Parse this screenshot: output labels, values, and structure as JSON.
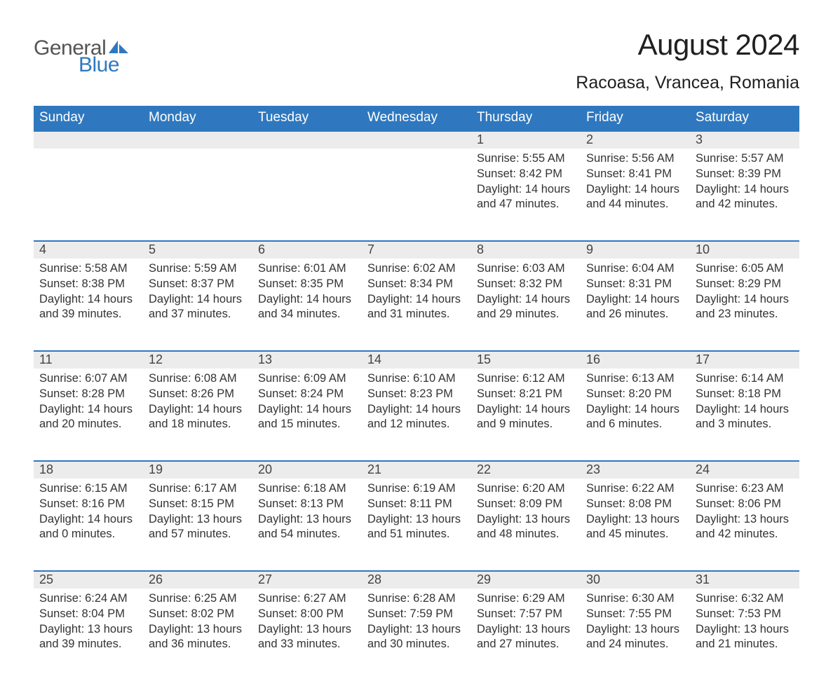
{
  "brand": {
    "part1": "General",
    "part2": "Blue",
    "text_color": "#555555",
    "accent_color": "#2f78bf"
  },
  "title": "August 2024",
  "location": "Racoasa, Vrancea, Romania",
  "colors": {
    "header_bg": "#2f78bf",
    "header_text": "#ffffff",
    "daynum_bg": "#ececec",
    "daynum_border": "#2f78bf",
    "body_text": "#333333",
    "page_bg": "#ffffff"
  },
  "typography": {
    "title_fontsize": 42,
    "location_fontsize": 25,
    "weekday_fontsize": 19,
    "daynum_fontsize": 18,
    "cell_fontsize": 16.5,
    "font_family": "Arial"
  },
  "layout": {
    "columns": 7,
    "weeks": 5,
    "leading_blanks": 4
  },
  "weekdays": [
    "Sunday",
    "Monday",
    "Tuesday",
    "Wednesday",
    "Thursday",
    "Friday",
    "Saturday"
  ],
  "days": [
    {
      "n": "1",
      "sunrise": "Sunrise: 5:55 AM",
      "sunset": "Sunset: 8:42 PM",
      "daylight": "Daylight: 14 hours and 47 minutes."
    },
    {
      "n": "2",
      "sunrise": "Sunrise: 5:56 AM",
      "sunset": "Sunset: 8:41 PM",
      "daylight": "Daylight: 14 hours and 44 minutes."
    },
    {
      "n": "3",
      "sunrise": "Sunrise: 5:57 AM",
      "sunset": "Sunset: 8:39 PM",
      "daylight": "Daylight: 14 hours and 42 minutes."
    },
    {
      "n": "4",
      "sunrise": "Sunrise: 5:58 AM",
      "sunset": "Sunset: 8:38 PM",
      "daylight": "Daylight: 14 hours and 39 minutes."
    },
    {
      "n": "5",
      "sunrise": "Sunrise: 5:59 AM",
      "sunset": "Sunset: 8:37 PM",
      "daylight": "Daylight: 14 hours and 37 minutes."
    },
    {
      "n": "6",
      "sunrise": "Sunrise: 6:01 AM",
      "sunset": "Sunset: 8:35 PM",
      "daylight": "Daylight: 14 hours and 34 minutes."
    },
    {
      "n": "7",
      "sunrise": "Sunrise: 6:02 AM",
      "sunset": "Sunset: 8:34 PM",
      "daylight": "Daylight: 14 hours and 31 minutes."
    },
    {
      "n": "8",
      "sunrise": "Sunrise: 6:03 AM",
      "sunset": "Sunset: 8:32 PM",
      "daylight": "Daylight: 14 hours and 29 minutes."
    },
    {
      "n": "9",
      "sunrise": "Sunrise: 6:04 AM",
      "sunset": "Sunset: 8:31 PM",
      "daylight": "Daylight: 14 hours and 26 minutes."
    },
    {
      "n": "10",
      "sunrise": "Sunrise: 6:05 AM",
      "sunset": "Sunset: 8:29 PM",
      "daylight": "Daylight: 14 hours and 23 minutes."
    },
    {
      "n": "11",
      "sunrise": "Sunrise: 6:07 AM",
      "sunset": "Sunset: 8:28 PM",
      "daylight": "Daylight: 14 hours and 20 minutes."
    },
    {
      "n": "12",
      "sunrise": "Sunrise: 6:08 AM",
      "sunset": "Sunset: 8:26 PM",
      "daylight": "Daylight: 14 hours and 18 minutes."
    },
    {
      "n": "13",
      "sunrise": "Sunrise: 6:09 AM",
      "sunset": "Sunset: 8:24 PM",
      "daylight": "Daylight: 14 hours and 15 minutes."
    },
    {
      "n": "14",
      "sunrise": "Sunrise: 6:10 AM",
      "sunset": "Sunset: 8:23 PM",
      "daylight": "Daylight: 14 hours and 12 minutes."
    },
    {
      "n": "15",
      "sunrise": "Sunrise: 6:12 AM",
      "sunset": "Sunset: 8:21 PM",
      "daylight": "Daylight: 14 hours and 9 minutes."
    },
    {
      "n": "16",
      "sunrise": "Sunrise: 6:13 AM",
      "sunset": "Sunset: 8:20 PM",
      "daylight": "Daylight: 14 hours and 6 minutes."
    },
    {
      "n": "17",
      "sunrise": "Sunrise: 6:14 AM",
      "sunset": "Sunset: 8:18 PM",
      "daylight": "Daylight: 14 hours and 3 minutes."
    },
    {
      "n": "18",
      "sunrise": "Sunrise: 6:15 AM",
      "sunset": "Sunset: 8:16 PM",
      "daylight": "Daylight: 14 hours and 0 minutes."
    },
    {
      "n": "19",
      "sunrise": "Sunrise: 6:17 AM",
      "sunset": "Sunset: 8:15 PM",
      "daylight": "Daylight: 13 hours and 57 minutes."
    },
    {
      "n": "20",
      "sunrise": "Sunrise: 6:18 AM",
      "sunset": "Sunset: 8:13 PM",
      "daylight": "Daylight: 13 hours and 54 minutes."
    },
    {
      "n": "21",
      "sunrise": "Sunrise: 6:19 AM",
      "sunset": "Sunset: 8:11 PM",
      "daylight": "Daylight: 13 hours and 51 minutes."
    },
    {
      "n": "22",
      "sunrise": "Sunrise: 6:20 AM",
      "sunset": "Sunset: 8:09 PM",
      "daylight": "Daylight: 13 hours and 48 minutes."
    },
    {
      "n": "23",
      "sunrise": "Sunrise: 6:22 AM",
      "sunset": "Sunset: 8:08 PM",
      "daylight": "Daylight: 13 hours and 45 minutes."
    },
    {
      "n": "24",
      "sunrise": "Sunrise: 6:23 AM",
      "sunset": "Sunset: 8:06 PM",
      "daylight": "Daylight: 13 hours and 42 minutes."
    },
    {
      "n": "25",
      "sunrise": "Sunrise: 6:24 AM",
      "sunset": "Sunset: 8:04 PM",
      "daylight": "Daylight: 13 hours and 39 minutes."
    },
    {
      "n": "26",
      "sunrise": "Sunrise: 6:25 AM",
      "sunset": "Sunset: 8:02 PM",
      "daylight": "Daylight: 13 hours and 36 minutes."
    },
    {
      "n": "27",
      "sunrise": "Sunrise: 6:27 AM",
      "sunset": "Sunset: 8:00 PM",
      "daylight": "Daylight: 13 hours and 33 minutes."
    },
    {
      "n": "28",
      "sunrise": "Sunrise: 6:28 AM",
      "sunset": "Sunset: 7:59 PM",
      "daylight": "Daylight: 13 hours and 30 minutes."
    },
    {
      "n": "29",
      "sunrise": "Sunrise: 6:29 AM",
      "sunset": "Sunset: 7:57 PM",
      "daylight": "Daylight: 13 hours and 27 minutes."
    },
    {
      "n": "30",
      "sunrise": "Sunrise: 6:30 AM",
      "sunset": "Sunset: 7:55 PM",
      "daylight": "Daylight: 13 hours and 24 minutes."
    },
    {
      "n": "31",
      "sunrise": "Sunrise: 6:32 AM",
      "sunset": "Sunset: 7:53 PM",
      "daylight": "Daylight: 13 hours and 21 minutes."
    }
  ]
}
